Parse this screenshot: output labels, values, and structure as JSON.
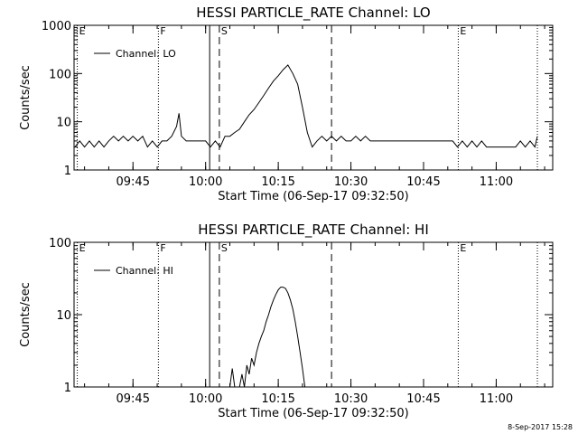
{
  "footer": {
    "timestamp": "8-Sep-2017 15:28"
  },
  "chart_data": [
    {
      "type": "line",
      "title": "HESSI PARTICLE_RATE Channel: LO",
      "xlabel": "Start Time (06-Sep-17 09:32:50)",
      "ylabel": "Counts/sec",
      "y_scale": "log",
      "ylim": [
        1,
        1000
      ],
      "y_ticks": [
        1,
        10,
        100,
        1000
      ],
      "y_tick_labels": [
        "1",
        "10",
        "100",
        "1000"
      ],
      "xlim": [
        "09:32:50",
        "11:11:40"
      ],
      "x_ticks": [
        "09:45",
        "10:00",
        "10:15",
        "10:30",
        "10:45",
        "11:00"
      ],
      "x_tick_labels": [
        "09:45",
        "10:00",
        "10:15",
        "10:30",
        "10:45",
        "11:00"
      ],
      "legend": {
        "position": "top-left",
        "entries": [
          "Channel: LO"
        ]
      },
      "markers": [
        {
          "time": "09:33:30",
          "style": "dotted",
          "label": "E"
        },
        {
          "time": "09:50:15",
          "style": "dotted",
          "label": "F"
        },
        {
          "time": "10:00:50",
          "style": "solid",
          "label": ""
        },
        {
          "time": "10:02:50",
          "style": "dashed",
          "label": "S"
        },
        {
          "time": "10:26:00",
          "style": "dashed",
          "label": ""
        },
        {
          "time": "10:52:10",
          "style": "dotted",
          "label": "E"
        },
        {
          "time": "11:08:30",
          "style": "dotted",
          "label": ""
        }
      ],
      "series": [
        {
          "name": "Channel: LO",
          "points": [
            [
              "09:33:00",
              3
            ],
            [
              "09:34:00",
              4
            ],
            [
              "09:35:00",
              3
            ],
            [
              "09:36:00",
              4
            ],
            [
              "09:37:00",
              3
            ],
            [
              "09:38:00",
              4
            ],
            [
              "09:39:00",
              3
            ],
            [
              "09:40:00",
              4
            ],
            [
              "09:41:00",
              5
            ],
            [
              "09:42:00",
              4
            ],
            [
              "09:43:00",
              5
            ],
            [
              "09:44:00",
              4
            ],
            [
              "09:45:00",
              5
            ],
            [
              "09:46:00",
              4
            ],
            [
              "09:47:00",
              5
            ],
            [
              "09:48:00",
              3
            ],
            [
              "09:49:00",
              4
            ],
            [
              "09:50:00",
              3
            ],
            [
              "09:51:00",
              4
            ],
            [
              "09:52:00",
              4
            ],
            [
              "09:53:00",
              5
            ],
            [
              "09:54:00",
              8
            ],
            [
              "09:54:30",
              15
            ],
            [
              "09:55:00",
              5
            ],
            [
              "09:56:00",
              4
            ],
            [
              "09:57:00",
              4
            ],
            [
              "09:58:00",
              4
            ],
            [
              "09:59:00",
              4
            ],
            [
              "10:00:00",
              4
            ],
            [
              "10:01:00",
              3
            ],
            [
              "10:02:00",
              4
            ],
            [
              "10:03:00",
              3
            ],
            [
              "10:04:00",
              5
            ],
            [
              "10:05:00",
              5
            ],
            [
              "10:06:00",
              6
            ],
            [
              "10:07:00",
              7
            ],
            [
              "10:08:00",
              10
            ],
            [
              "10:09:00",
              14
            ],
            [
              "10:10:00",
              18
            ],
            [
              "10:11:00",
              25
            ],
            [
              "10:12:00",
              35
            ],
            [
              "10:13:00",
              50
            ],
            [
              "10:14:00",
              70
            ],
            [
              "10:15:00",
              90
            ],
            [
              "10:16:00",
              120
            ],
            [
              "10:17:00",
              150
            ],
            [
              "10:18:00",
              100
            ],
            [
              "10:19:00",
              60
            ],
            [
              "10:20:00",
              20
            ],
            [
              "10:21:00",
              6
            ],
            [
              "10:22:00",
              3
            ],
            [
              "10:23:00",
              4
            ],
            [
              "10:24:00",
              5
            ],
            [
              "10:25:00",
              4
            ],
            [
              "10:26:00",
              5
            ],
            [
              "10:27:00",
              4
            ],
            [
              "10:28:00",
              5
            ],
            [
              "10:29:00",
              4
            ],
            [
              "10:30:00",
              4
            ],
            [
              "10:31:00",
              5
            ],
            [
              "10:32:00",
              4
            ],
            [
              "10:33:00",
              5
            ],
            [
              "10:34:00",
              4
            ],
            [
              "10:35:00",
              4
            ],
            [
              "10:36:00",
              4
            ],
            [
              "10:37:00",
              4
            ],
            [
              "10:38:00",
              4
            ],
            [
              "10:39:00",
              4
            ],
            [
              "10:40:00",
              4
            ],
            [
              "10:41:00",
              4
            ],
            [
              "10:42:00",
              4
            ],
            [
              "10:43:00",
              4
            ],
            [
              "10:44:00",
              4
            ],
            [
              "10:45:00",
              4
            ],
            [
              "10:46:00",
              4
            ],
            [
              "10:47:00",
              4
            ],
            [
              "10:48:00",
              4
            ],
            [
              "10:49:00",
              4
            ],
            [
              "10:50:00",
              4
            ],
            [
              "10:51:00",
              4
            ],
            [
              "10:52:00",
              3
            ],
            [
              "10:53:00",
              4
            ],
            [
              "10:54:00",
              3
            ],
            [
              "10:55:00",
              4
            ],
            [
              "10:56:00",
              3
            ],
            [
              "10:57:00",
              4
            ],
            [
              "10:58:00",
              3
            ],
            [
              "10:59:00",
              3
            ],
            [
              "11:00:00",
              3
            ],
            [
              "11:01:00",
              3
            ],
            [
              "11:02:00",
              3
            ],
            [
              "11:03:00",
              3
            ],
            [
              "11:04:00",
              3
            ],
            [
              "11:05:00",
              4
            ],
            [
              "11:06:00",
              3
            ],
            [
              "11:07:00",
              4
            ],
            [
              "11:08:00",
              3
            ],
            [
              "11:08:30",
              5
            ]
          ]
        }
      ]
    },
    {
      "type": "line",
      "title": "HESSI PARTICLE_RATE Channel: HI",
      "xlabel": "Start Time (06-Sep-17 09:32:50)",
      "ylabel": "Counts/sec",
      "y_scale": "log",
      "ylim": [
        1,
        100
      ],
      "y_ticks": [
        1,
        10,
        100
      ],
      "y_tick_labels": [
        "1",
        "10",
        "100"
      ],
      "xlim": [
        "09:32:50",
        "11:11:40"
      ],
      "x_ticks": [
        "09:45",
        "10:00",
        "10:15",
        "10:30",
        "10:45",
        "11:00"
      ],
      "x_tick_labels": [
        "09:45",
        "10:00",
        "10:15",
        "10:30",
        "10:45",
        "11:00"
      ],
      "legend": {
        "position": "top-left",
        "entries": [
          "Channel: HI"
        ]
      },
      "markers": [
        {
          "time": "09:33:30",
          "style": "dotted",
          "label": "E"
        },
        {
          "time": "09:50:15",
          "style": "dotted",
          "label": "F"
        },
        {
          "time": "10:00:50",
          "style": "solid",
          "label": ""
        },
        {
          "time": "10:02:50",
          "style": "dashed",
          "label": "S"
        },
        {
          "time": "10:26:00",
          "style": "dashed",
          "label": ""
        },
        {
          "time": "10:52:10",
          "style": "dotted",
          "label": "E"
        },
        {
          "time": "11:08:30",
          "style": "dotted",
          "label": ""
        }
      ],
      "series": [
        {
          "name": "Channel: HI",
          "points": [
            [
              "10:05:00",
              1
            ],
            [
              "10:05:30",
              1.8
            ],
            [
              "10:06:00",
              1
            ],
            [
              "10:07:00",
              1
            ],
            [
              "10:07:30",
              1.5
            ],
            [
              "10:08:00",
              1
            ],
            [
              "10:08:30",
              2
            ],
            [
              "10:09:00",
              1.5
            ],
            [
              "10:09:30",
              2.5
            ],
            [
              "10:10:00",
              2
            ],
            [
              "10:10:30",
              3
            ],
            [
              "10:11:00",
              4
            ],
            [
              "10:11:30",
              5
            ],
            [
              "10:12:00",
              6
            ],
            [
              "10:12:30",
              8
            ],
            [
              "10:13:00",
              10
            ],
            [
              "10:13:30",
              13
            ],
            [
              "10:14:00",
              16
            ],
            [
              "10:14:30",
              19
            ],
            [
              "10:15:00",
              22
            ],
            [
              "10:15:30",
              24
            ],
            [
              "10:16:00",
              24
            ],
            [
              "10:16:30",
              23
            ],
            [
              "10:17:00",
              20
            ],
            [
              "10:17:30",
              16
            ],
            [
              "10:18:00",
              12
            ],
            [
              "10:18:30",
              8
            ],
            [
              "10:19:00",
              5
            ],
            [
              "10:19:30",
              3
            ],
            [
              "10:20:00",
              1.8
            ],
            [
              "10:20:30",
              1
            ]
          ]
        }
      ]
    }
  ]
}
